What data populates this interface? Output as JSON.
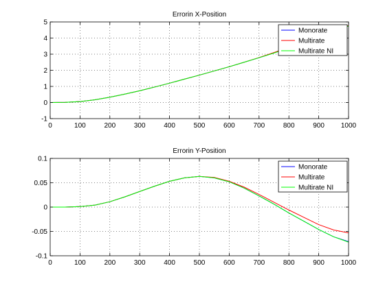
{
  "chart_data": [
    {
      "type": "line",
      "title": "Errorin X-Position",
      "xlabel": "",
      "ylabel": "",
      "xlim": [
        0,
        1000
      ],
      "ylim": [
        -1,
        5
      ],
      "xticks": [
        0,
        100,
        200,
        300,
        400,
        500,
        600,
        700,
        800,
        900,
        1000
      ],
      "yticks": [
        -1,
        0,
        1,
        2,
        3,
        4,
        5
      ],
      "grid": true,
      "legend_position": "top-right",
      "series": [
        {
          "name": "Monorate",
          "color": "#0000ff",
          "x": [
            0,
            50,
            100,
            150,
            200,
            250,
            300,
            350,
            400,
            450,
            500,
            550,
            600,
            650,
            700,
            750,
            800,
            850,
            900,
            950,
            1000
          ],
          "y": [
            0,
            0.01,
            0.06,
            0.17,
            0.33,
            0.52,
            0.73,
            0.96,
            1.2,
            1.45,
            1.7,
            1.96,
            2.22,
            2.5,
            2.78,
            3.08,
            3.4,
            3.72,
            4.08,
            4.44,
            4.75
          ]
        },
        {
          "name": "Multirate",
          "color": "#ff0000",
          "x": [
            0,
            50,
            100,
            150,
            200,
            250,
            300,
            350,
            400,
            450,
            500,
            550,
            600,
            650,
            700,
            750,
            800,
            850,
            900,
            950,
            1000
          ],
          "y": [
            0,
            0.01,
            0.06,
            0.17,
            0.33,
            0.52,
            0.73,
            0.96,
            1.2,
            1.45,
            1.7,
            1.96,
            2.22,
            2.5,
            2.79,
            3.1,
            3.43,
            3.76,
            4.12,
            4.47,
            4.78
          ]
        },
        {
          "name": "Multirate NI",
          "color": "#00ff00",
          "x": [
            0,
            50,
            100,
            150,
            200,
            250,
            300,
            350,
            400,
            450,
            500,
            550,
            600,
            650,
            700,
            750,
            800,
            850,
            900,
            950,
            1000
          ],
          "y": [
            0,
            0.01,
            0.06,
            0.17,
            0.33,
            0.52,
            0.73,
            0.96,
            1.2,
            1.45,
            1.7,
            1.96,
            2.22,
            2.5,
            2.78,
            3.07,
            3.39,
            3.71,
            4.07,
            4.43,
            4.75
          ]
        }
      ]
    },
    {
      "type": "line",
      "title": "Errorin Y-Position",
      "xlabel": "",
      "ylabel": "",
      "xlim": [
        0,
        1000
      ],
      "ylim": [
        -0.1,
        0.1
      ],
      "xticks": [
        0,
        100,
        200,
        300,
        400,
        500,
        600,
        700,
        800,
        900,
        1000
      ],
      "yticks": [
        -0.1,
        -0.05,
        0,
        0.05,
        0.1
      ],
      "ytick_labels": [
        "-0.1",
        "-0.05",
        "0",
        "0.05",
        "0.1"
      ],
      "grid": true,
      "legend_position": "top-right",
      "series": [
        {
          "name": "Monorate",
          "color": "#0000ff",
          "x": [
            0,
            50,
            100,
            150,
            200,
            250,
            300,
            350,
            400,
            450,
            500,
            550,
            600,
            650,
            700,
            750,
            800,
            850,
            900,
            950,
            1000
          ],
          "y": [
            0,
            0,
            0.001,
            0.004,
            0.011,
            0.021,
            0.032,
            0.043,
            0.053,
            0.06,
            0.063,
            0.06,
            0.052,
            0.039,
            0.023,
            0.006,
            -0.012,
            -0.029,
            -0.046,
            -0.061,
            -0.071
          ]
        },
        {
          "name": "Multirate",
          "color": "#ff0000",
          "x": [
            0,
            50,
            100,
            150,
            200,
            250,
            300,
            350,
            400,
            450,
            500,
            550,
            600,
            650,
            700,
            750,
            800,
            850,
            900,
            950,
            1000
          ],
          "y": [
            0,
            0,
            0.001,
            0.004,
            0.011,
            0.021,
            0.032,
            0.043,
            0.053,
            0.06,
            0.063,
            0.061,
            0.053,
            0.041,
            0.026,
            0.01,
            -0.006,
            -0.021,
            -0.036,
            -0.047,
            -0.053
          ]
        },
        {
          "name": "Multirate NI",
          "color": "#00ff00",
          "x": [
            0,
            50,
            100,
            150,
            200,
            250,
            300,
            350,
            400,
            450,
            500,
            550,
            600,
            650,
            700,
            750,
            800,
            850,
            900,
            950,
            1000
          ],
          "y": [
            0,
            0,
            0.001,
            0.004,
            0.011,
            0.021,
            0.032,
            0.043,
            0.053,
            0.06,
            0.063,
            0.06,
            0.052,
            0.039,
            0.023,
            0.006,
            -0.012,
            -0.029,
            -0.046,
            -0.061,
            -0.072
          ]
        }
      ]
    }
  ]
}
